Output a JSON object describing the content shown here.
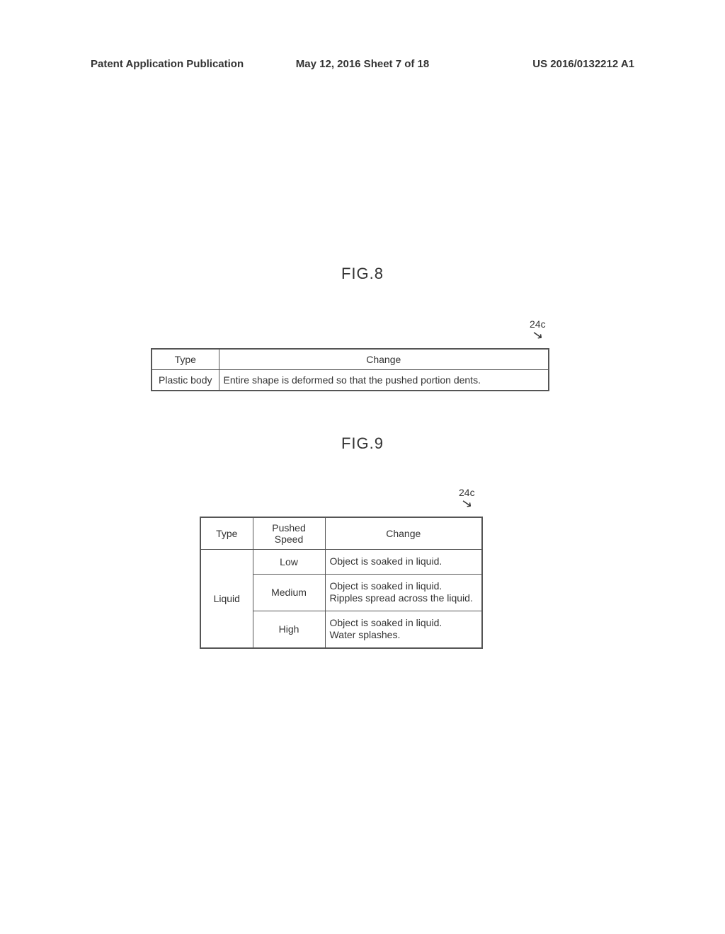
{
  "header": {
    "left": "Patent Application Publication",
    "mid": "May 12, 2016  Sheet 7 of 18",
    "right": "US 2016/0132212 A1"
  },
  "fig8": {
    "label": "FIG.8",
    "ref": "24c",
    "columns": {
      "type": "Type",
      "change": "Change"
    },
    "rows": [
      {
        "type": "Plastic body",
        "change": "Entire shape is deformed so that the pushed portion dents."
      }
    ]
  },
  "fig9": {
    "label": "FIG.9",
    "ref": "24c",
    "columns": {
      "type": "Type",
      "speed": "Pushed Speed",
      "change": "Change"
    },
    "type_value": "Liquid",
    "rows": [
      {
        "speed": "Low",
        "change": "Object is soaked in liquid."
      },
      {
        "speed": "Medium",
        "change": "Object is soaked in liquid.\nRipples spread across the liquid."
      },
      {
        "speed": "High",
        "change": "Object is soaked in liquid.\nWater splashes."
      }
    ]
  }
}
